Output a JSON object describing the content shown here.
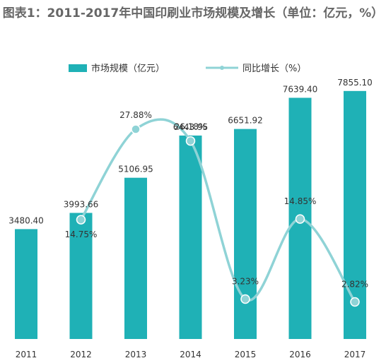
{
  "chart_data": {
    "type": "bar+line",
    "title": "图表1：2011-2017年中国印刷业市场规模及增长（单位：亿元，%）",
    "categories": [
      "2011",
      "2012",
      "2013",
      "2014",
      "2015",
      "2016",
      "2017"
    ],
    "series": [
      {
        "name": "市场规模（亿元）",
        "type": "bar",
        "axis": "left",
        "values": [
          3480.4,
          3993.66,
          5106.95,
          6443.95,
          6651.92,
          7639.4,
          7855.1
        ],
        "labels": [
          "3480.40",
          "3993.66",
          "5106.95",
          "6443.95",
          "6651.92",
          "7639.40",
          "7855.10"
        ]
      },
      {
        "name": "同比增长（%）",
        "type": "line",
        "axis": "right",
        "smooth": true,
        "values": [
          null,
          14.75,
          27.88,
          26.18,
          3.23,
          14.85,
          2.82
        ],
        "labels": [
          null,
          "14.75%",
          "27.88%",
          "26.18%",
          "3.23%",
          "14.85%",
          "2.82%"
        ]
      }
    ],
    "bar_ylim": [
      0,
      8500
    ],
    "line_ylim": [
      0,
      30
    ],
    "grid": false,
    "legend_position": "top",
    "colors": {
      "bar": "#1fb1b6",
      "line": "#8fd3d6",
      "marker": "#8fd3d6",
      "text": "#333333"
    }
  }
}
